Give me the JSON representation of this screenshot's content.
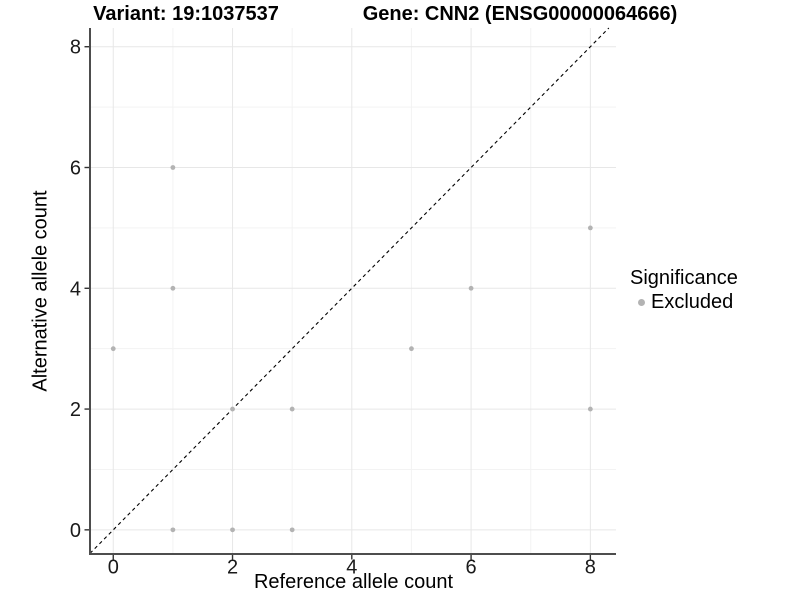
{
  "chart_data": {
    "type": "scatter",
    "title_left": "Variant: 19:1037537",
    "title_right": "Gene: CNN2 (ENSG00000064666)",
    "xlabel": "Reference allele count",
    "ylabel": "Alternative allele count",
    "xlim": [
      -0.39,
      8.43
    ],
    "ylim": [
      -0.4,
      8.31
    ],
    "xticks": [
      0,
      2,
      4,
      6,
      8
    ],
    "yticks": [
      0,
      2,
      4,
      6,
      8
    ],
    "minor_xticks": [
      1,
      3,
      5,
      7
    ],
    "minor_yticks": [
      1,
      3,
      5,
      7
    ],
    "grid": "on",
    "identity_line": {
      "style": "dashed",
      "equation": "y = x",
      "color": "#000000"
    },
    "series": [
      {
        "name": "Excluded",
        "color": "#b3b3b3",
        "points": [
          [
            0,
            3
          ],
          [
            1,
            0
          ],
          [
            1,
            4
          ],
          [
            1,
            6
          ],
          [
            2,
            0
          ],
          [
            2,
            2
          ],
          [
            3,
            0
          ],
          [
            3,
            2
          ],
          [
            5,
            3
          ],
          [
            6,
            4
          ],
          [
            8,
            2
          ],
          [
            8,
            5
          ]
        ]
      }
    ],
    "legend": {
      "title": "Significance",
      "position": "right",
      "items": [
        {
          "label": "Excluded",
          "color": "#b3b3b3"
        }
      ]
    }
  },
  "style_colors": {
    "axis_line": "#4d4d4d",
    "tick_mark": "#333333",
    "tick_label": "#1a1a1a",
    "grid_major": "#e7e7e7",
    "grid_minor": "#f3f3f3"
  }
}
